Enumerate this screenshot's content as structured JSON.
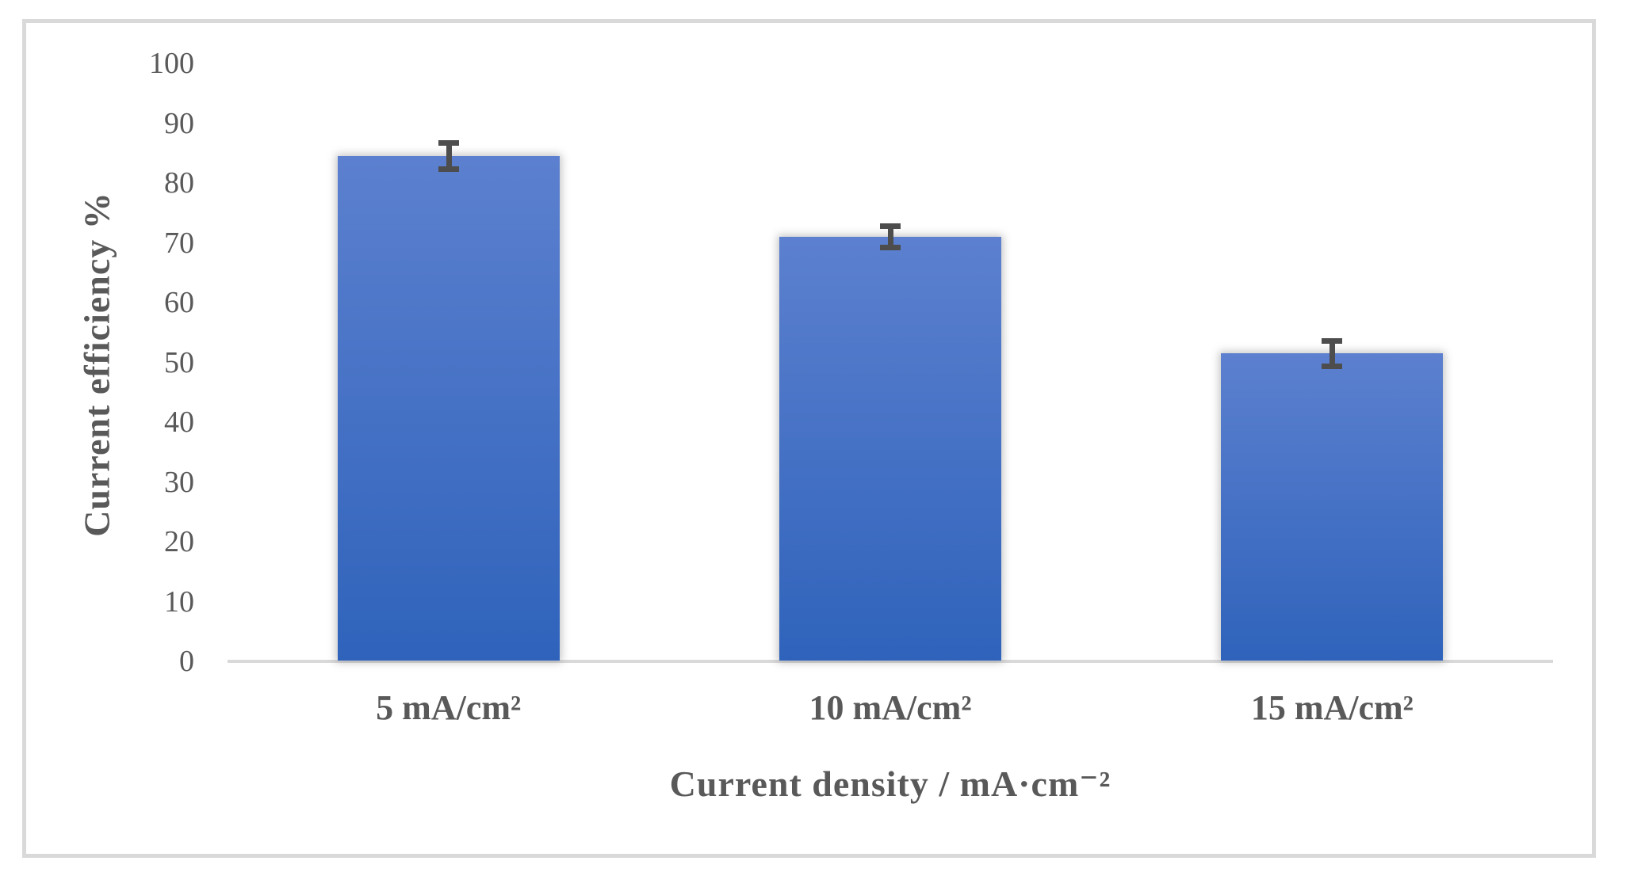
{
  "figure": {
    "border_color": "#D9D9D9",
    "background_color": "#FFFFFF"
  },
  "chart_data": {
    "type": "bar",
    "title": "",
    "categories": [
      "5 mA/cm²",
      "10 mA/cm²",
      "15 mA/cm²"
    ],
    "values": [
      84.5,
      71,
      51.5
    ],
    "error_bars": [
      2.6,
      2.2,
      2.6
    ],
    "xlabel": "Current density / mA·cm⁻²",
    "ylabel": "Current efficiency %",
    "ylim": [
      0,
      100
    ],
    "yticks": [
      0,
      10,
      20,
      30,
      40,
      50,
      60,
      70,
      80,
      90,
      100
    ],
    "grid": false,
    "legend": null,
    "bar_color_top": "#5C80CF",
    "bar_color_bottom": "#2F63BB",
    "error_bar_color": "#4D4D4D",
    "axis_line_color": "#D9D9D9",
    "text_color": "#595959"
  }
}
